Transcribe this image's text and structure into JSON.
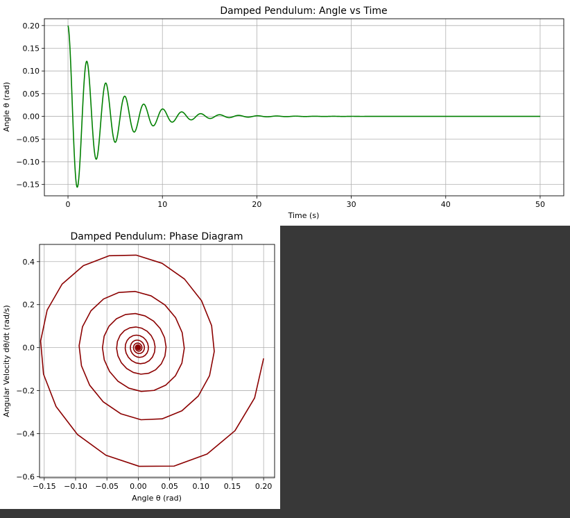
{
  "chart_data": [
    {
      "type": "line",
      "title": "Damped Pendulum: Angle vs Time",
      "xlabel": "Time (s)",
      "ylabel": "Angle θ (rad)",
      "xlim": [
        -2.5,
        52.5
      ],
      "ylim": [
        -0.175,
        0.215
      ],
      "xticks": [
        0,
        10,
        20,
        30,
        40,
        50
      ],
      "xtick_labels": [
        "0",
        "10",
        "20",
        "30",
        "40",
        "50"
      ],
      "yticks": [
        -0.15,
        -0.1,
        -0.05,
        0.0,
        0.05,
        0.1,
        0.15,
        0.2
      ],
      "ytick_labels": [
        "−0.15",
        "−0.10",
        "−0.05",
        "0.00",
        "0.05",
        "0.10",
        "0.15",
        "0.20"
      ],
      "grid": true,
      "series": [
        {
          "color": "#008000",
          "model": {
            "amplitude": 0.2,
            "decay_rate": 0.25,
            "angular_frequency": 3.125
          },
          "x_range": [
            0,
            50
          ],
          "samples": 2500
        }
      ]
    },
    {
      "type": "line",
      "title": "Damped Pendulum: Phase Diagram",
      "xlabel": "Angle θ (rad)",
      "ylabel": "Angular Velocity dθ/dt (rad/s)",
      "xlim": [
        -0.1575,
        0.2175
      ],
      "ylim": [
        -0.605,
        0.48
      ],
      "xticks": [
        -0.15,
        -0.1,
        -0.05,
        0.0,
        0.05,
        0.1,
        0.15,
        0.2
      ],
      "xtick_labels": [
        "−0.15",
        "−0.10",
        "−0.05",
        "0.00",
        "0.05",
        "0.10",
        "0.15",
        "0.20"
      ],
      "yticks": [
        -0.6,
        -0.4,
        -0.2,
        0.0,
        0.2,
        0.4
      ],
      "ytick_labels": [
        "−0.6",
        "−0.4",
        "−0.2",
        "0.0",
        "0.2",
        "0.4"
      ],
      "grid": true,
      "series": [
        {
          "color": "#8b0000",
          "model": {
            "amplitude": 0.2,
            "decay_rate": 0.25,
            "angular_frequency": 3.125
          },
          "x_range": [
            0,
            50
          ],
          "samples": 500
        }
      ]
    }
  ]
}
